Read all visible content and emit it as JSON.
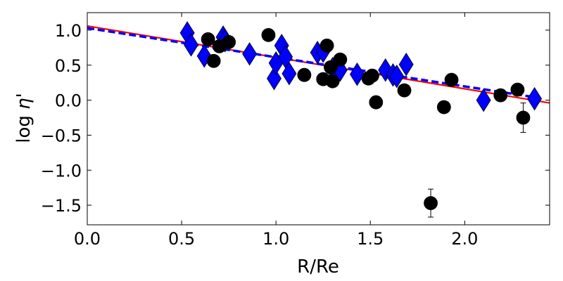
{
  "chart_data": {
    "type": "scatter",
    "xlabel": "R/Re",
    "ylabel_prefix": "log ",
    "ylabel_symbol": "η'",
    "xlim": [
      0.0,
      2.45
    ],
    "ylim": [
      -1.78,
      1.25
    ],
    "xticks": [
      0.0,
      0.5,
      1.0,
      1.5,
      2.0
    ],
    "xtick_labels": [
      "0.0",
      "0.5",
      "1.0",
      "1.5",
      "2.0"
    ],
    "yticks": [
      1.0,
      0.5,
      0.0,
      -0.5,
      -1.0,
      -1.5
    ],
    "ytick_labels": [
      "1.0",
      "0.5",
      "0.0",
      "−0.5",
      "−1.0",
      "−1.5"
    ],
    "grid": false,
    "series": [
      {
        "marker": "diamond",
        "color": "#0000ff",
        "points": [
          [
            0.53,
            0.96
          ],
          [
            0.55,
            0.79
          ],
          [
            0.62,
            0.63
          ],
          [
            0.72,
            0.9
          ],
          [
            0.73,
            0.85
          ],
          [
            0.86,
            0.66
          ],
          [
            0.99,
            0.31
          ],
          [
            1.0,
            0.53
          ],
          [
            1.03,
            0.78
          ],
          [
            1.05,
            0.62
          ],
          [
            1.07,
            0.38
          ],
          [
            1.22,
            0.68
          ],
          [
            1.25,
            0.7
          ],
          [
            1.3,
            0.45
          ],
          [
            1.32,
            0.4
          ],
          [
            1.34,
            0.43
          ],
          [
            1.43,
            0.37
          ],
          [
            1.58,
            0.43
          ],
          [
            1.62,
            0.36
          ],
          [
            1.64,
            0.34
          ],
          [
            1.69,
            0.51
          ],
          [
            2.1,
            0.0
          ],
          [
            2.37,
            0.02
          ]
        ]
      },
      {
        "marker": "circle",
        "color": "#000000",
        "points": [
          [
            0.64,
            0.87
          ],
          [
            0.67,
            0.56
          ],
          [
            0.7,
            0.77
          ],
          [
            0.75,
            0.83
          ],
          [
            0.96,
            0.93
          ],
          [
            1.15,
            0.36
          ],
          [
            1.25,
            0.3
          ],
          [
            1.27,
            0.78
          ],
          [
            1.29,
            0.47
          ],
          [
            1.3,
            0.27
          ],
          [
            1.34,
            0.58
          ],
          [
            1.49,
            0.31
          ],
          [
            1.51,
            0.35
          ],
          [
            1.53,
            -0.03
          ],
          [
            1.68,
            0.14
          ],
          [
            1.89,
            -0.1
          ],
          [
            1.93,
            0.29
          ],
          [
            2.19,
            0.07
          ],
          [
            2.28,
            0.15
          ]
        ]
      },
      {
        "marker": "circle",
        "color": "#000000",
        "points": [
          [
            1.82,
            -1.47
          ],
          [
            2.31,
            -0.25
          ]
        ],
        "yerr": [
          0.2,
          0.21
        ]
      }
    ],
    "fits": [
      {
        "style": "solid",
        "color": "#ff0000",
        "x": [
          0.0,
          2.45
        ],
        "y": [
          1.06,
          -0.04
        ]
      },
      {
        "style": "dashed",
        "color": "#0000ff",
        "x": [
          0.0,
          2.4
        ],
        "y": [
          1.03,
          0.03
        ]
      }
    ]
  }
}
